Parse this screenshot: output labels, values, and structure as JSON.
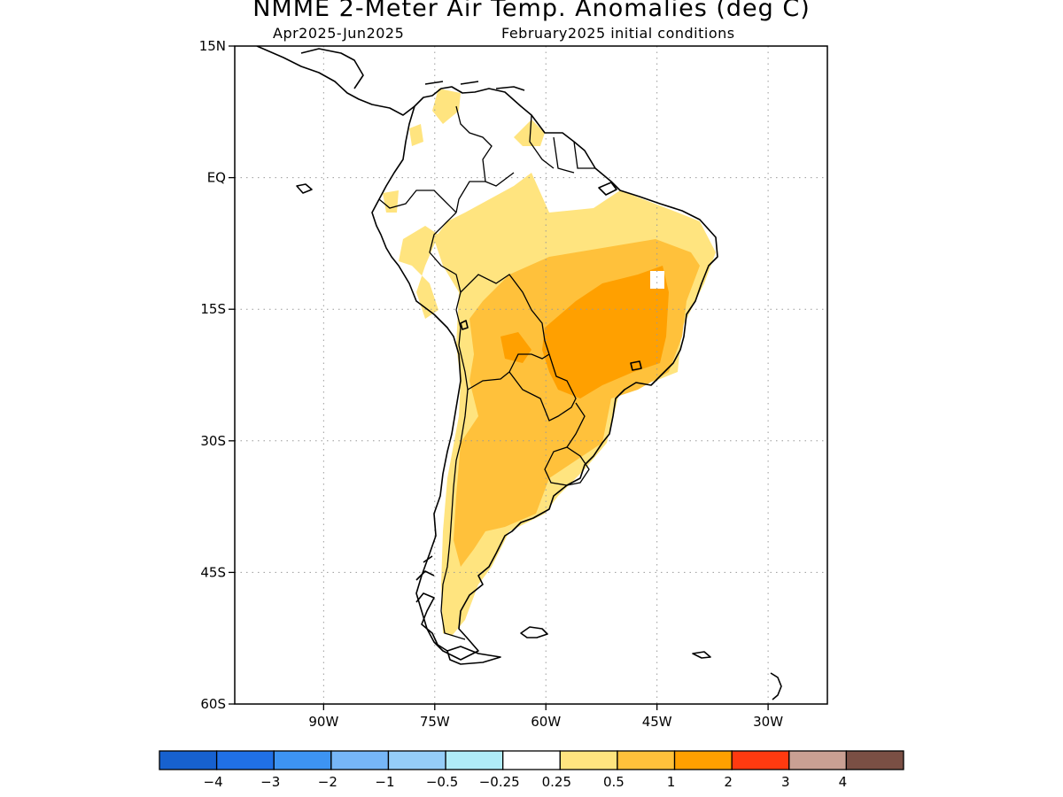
{
  "title": "NMME 2-Meter Air Temp. Anomalies (deg C)",
  "subtitle_left": "Apr2025-Jun2025",
  "subtitle_right": "February2025 initial conditions",
  "map": {
    "region": "South America",
    "lon_range": [
      -102,
      -22
    ],
    "lat_range": [
      -60,
      15
    ],
    "lat_ticks": [
      {
        "value": 15,
        "label": "15N"
      },
      {
        "value": 0,
        "label": "EQ"
      },
      {
        "value": -15,
        "label": "15S"
      },
      {
        "value": -30,
        "label": "30S"
      },
      {
        "value": -45,
        "label": "45S"
      },
      {
        "value": -60,
        "label": "60S"
      }
    ],
    "lon_ticks": [
      {
        "value": -90,
        "label": "90W"
      },
      {
        "value": -75,
        "label": "75W"
      },
      {
        "value": -60,
        "label": "60W"
      },
      {
        "value": -45,
        "label": "45W"
      },
      {
        "value": -30,
        "label": "30W"
      }
    ],
    "grid": "dotted"
  },
  "legend": {
    "colors": [
      "#1761cf",
      "#2070e6",
      "#3d94f3",
      "#76b6f7",
      "#95cdf8",
      "#b0ecf8",
      "#ffffff",
      "#ffe47f",
      "#ffc13b",
      "#ffa000",
      "#ff3a10",
      "#c9a093",
      "#7a4f44"
    ],
    "labels": [
      "-4",
      "-3",
      "-2",
      "-1",
      "-0.5",
      "-0.25",
      "0.25",
      "0.5",
      "1",
      "2",
      "3",
      "4"
    ]
  }
}
